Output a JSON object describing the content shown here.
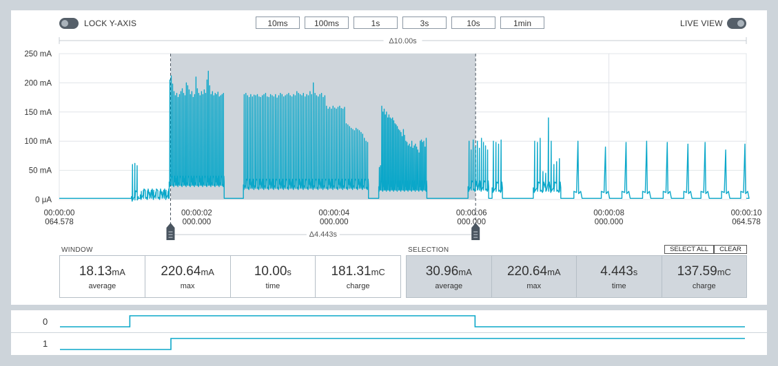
{
  "toolbar": {
    "lock_label": "LOCK Y-AXIS",
    "live_label": "LIVE VIEW",
    "window_buttons": [
      "10ms",
      "100ms",
      "1s",
      "3s",
      "10s",
      "1min"
    ]
  },
  "chart_data": {
    "type": "line",
    "title": "",
    "window_span_label": "Δ10.00s",
    "selection_span_label": "Δ4.443s",
    "ylabel": "",
    "xlabel": "",
    "ylim": [
      0,
      250
    ],
    "y_unit": "mA",
    "y_ticks": [
      "0 μA",
      "50 mA",
      "100 mA",
      "150 mA",
      "200 mA",
      "250 mA"
    ],
    "x_ticks": [
      {
        "t": 0,
        "line1": "00:00:00",
        "line2": "064.578"
      },
      {
        "t": 2,
        "line1": "00:00:02",
        "line2": "000.000"
      },
      {
        "t": 4,
        "line1": "00:00:04",
        "line2": "000.000"
      },
      {
        "t": 6,
        "line1": "00:00:06",
        "line2": "000.000"
      },
      {
        "t": 8,
        "line1": "00:00:08",
        "line2": "000.000"
      },
      {
        "t": 10,
        "line1": "00:00:10",
        "line2": "064.578"
      }
    ],
    "xlim": [
      0,
      10
    ],
    "selection": {
      "start": 1.62,
      "end": 6.06
    },
    "series": [
      {
        "color": "#0aa7c9",
        "baseline": 2,
        "segments": [
          {
            "start": 1.05,
            "end": 1.15,
            "level": 5,
            "spikes": [
              60,
              62,
              58
            ]
          },
          {
            "start": 1.18,
            "end": 1.6,
            "level": 8,
            "spikes": [
              14,
              16,
              13,
              15,
              12,
              14,
              16,
              13,
              15,
              14,
              13,
              15,
              16,
              14
            ]
          },
          {
            "start": 1.6,
            "end": 2.4,
            "level": 30,
            "spikes": [
              205,
              212,
              198,
              185,
              178,
              182,
              175,
              180,
              185,
              190,
              182,
              178,
              200,
              195,
              188,
              180,
              185,
              175,
              180,
              210,
              190,
              182,
              178,
              185,
              180,
              188,
              182,
              205,
              220,
              195,
              180,
              185,
              178,
              182,
              180,
              184,
              176,
              178,
              180,
              182
            ]
          },
          {
            "start": 2.68,
            "end": 4.5,
            "level": 25,
            "spikes": [
              180,
              182,
              178,
              175,
              180,
              176,
              179,
              178,
              180,
              176,
              175,
              178,
              180,
              182,
              176,
              175,
              180,
              178,
              176,
              180,
              174,
              178,
              182,
              180,
              176,
              178,
              180,
              182,
              178,
              176,
              180,
              178,
              185,
              182,
              180,
              178,
              182,
              176,
              180,
              178,
              185,
              180,
              200,
              182,
              178,
              176,
              180,
              182,
              175,
              178,
              160,
              155,
              158,
              155,
              160,
              157,
              155,
              158,
              160,
              156,
              155,
              158,
              130,
              128,
              125,
              122,
              120,
              118,
              122,
              120,
              118,
              115,
              112,
              105,
              100,
              98
            ]
          },
          {
            "start": 4.65,
            "end": 5.35,
            "level": 22,
            "spikes": [
              55,
              58,
              160,
              150,
              155,
              145,
              150,
              140,
              145,
              140,
              138,
              140,
              135,
              130,
              128,
              125,
              120,
              118,
              115,
              108,
              120,
              110,
              100,
              98,
              92,
              95,
              90,
              100,
              88,
              92,
              95,
              90,
              85,
              80,
              100,
              102,
              98,
              100,
              90,
              105
            ]
          },
          {
            "start": 5.95,
            "end": 6.25,
            "level": 22,
            "spikes": [
              100,
              85,
              102,
              90,
              100,
              88,
              105,
              98,
              92,
              85
            ]
          },
          {
            "start": 6.3,
            "end": 6.45,
            "level": 20,
            "spikes": [
              100,
              98,
              95,
              102
            ]
          },
          {
            "start": 6.9,
            "end": 7.3,
            "level": 20,
            "spikes": [
              100,
              98,
              105,
              48,
              45,
              140,
              100,
              60,
              65,
              70
            ]
          }
        ],
        "periodic_spikes": [
          7.55,
          7.95,
          8.25,
          8.55,
          8.85,
          9.15,
          9.4,
          9.7,
          9.98
        ],
        "periodic_heights": [
          100,
          90,
          98,
          100,
          98,
          95,
          98,
          85,
          95
        ]
      }
    ]
  },
  "window_stats": {
    "label": "WINDOW",
    "cells": [
      {
        "value": "18.13",
        "unit": "mA",
        "label": "average"
      },
      {
        "value": "220.64",
        "unit": "mA",
        "label": "max"
      },
      {
        "value": "10.00",
        "unit": "s",
        "label": "time"
      },
      {
        "value": "181.31",
        "unit": "mC",
        "label": "charge"
      }
    ]
  },
  "selection_stats": {
    "label": "SELECTION",
    "select_all": "SELECT ALL",
    "clear": "CLEAR",
    "cells": [
      {
        "value": "30.96",
        "unit": "mA",
        "label": "average"
      },
      {
        "value": "220.64",
        "unit": "mA",
        "label": "max"
      },
      {
        "value": "4.443",
        "unit": "s",
        "label": "time"
      },
      {
        "value": "137.59",
        "unit": "mC",
        "label": "charge"
      }
    ]
  },
  "digital_channels": [
    {
      "label": "0",
      "edges": [
        [
          0,
          0
        ],
        [
          1.02,
          1
        ],
        [
          6.06,
          0
        ]
      ]
    },
    {
      "label": "1",
      "edges": [
        [
          0,
          0
        ],
        [
          1.62,
          1
        ]
      ]
    }
  ]
}
